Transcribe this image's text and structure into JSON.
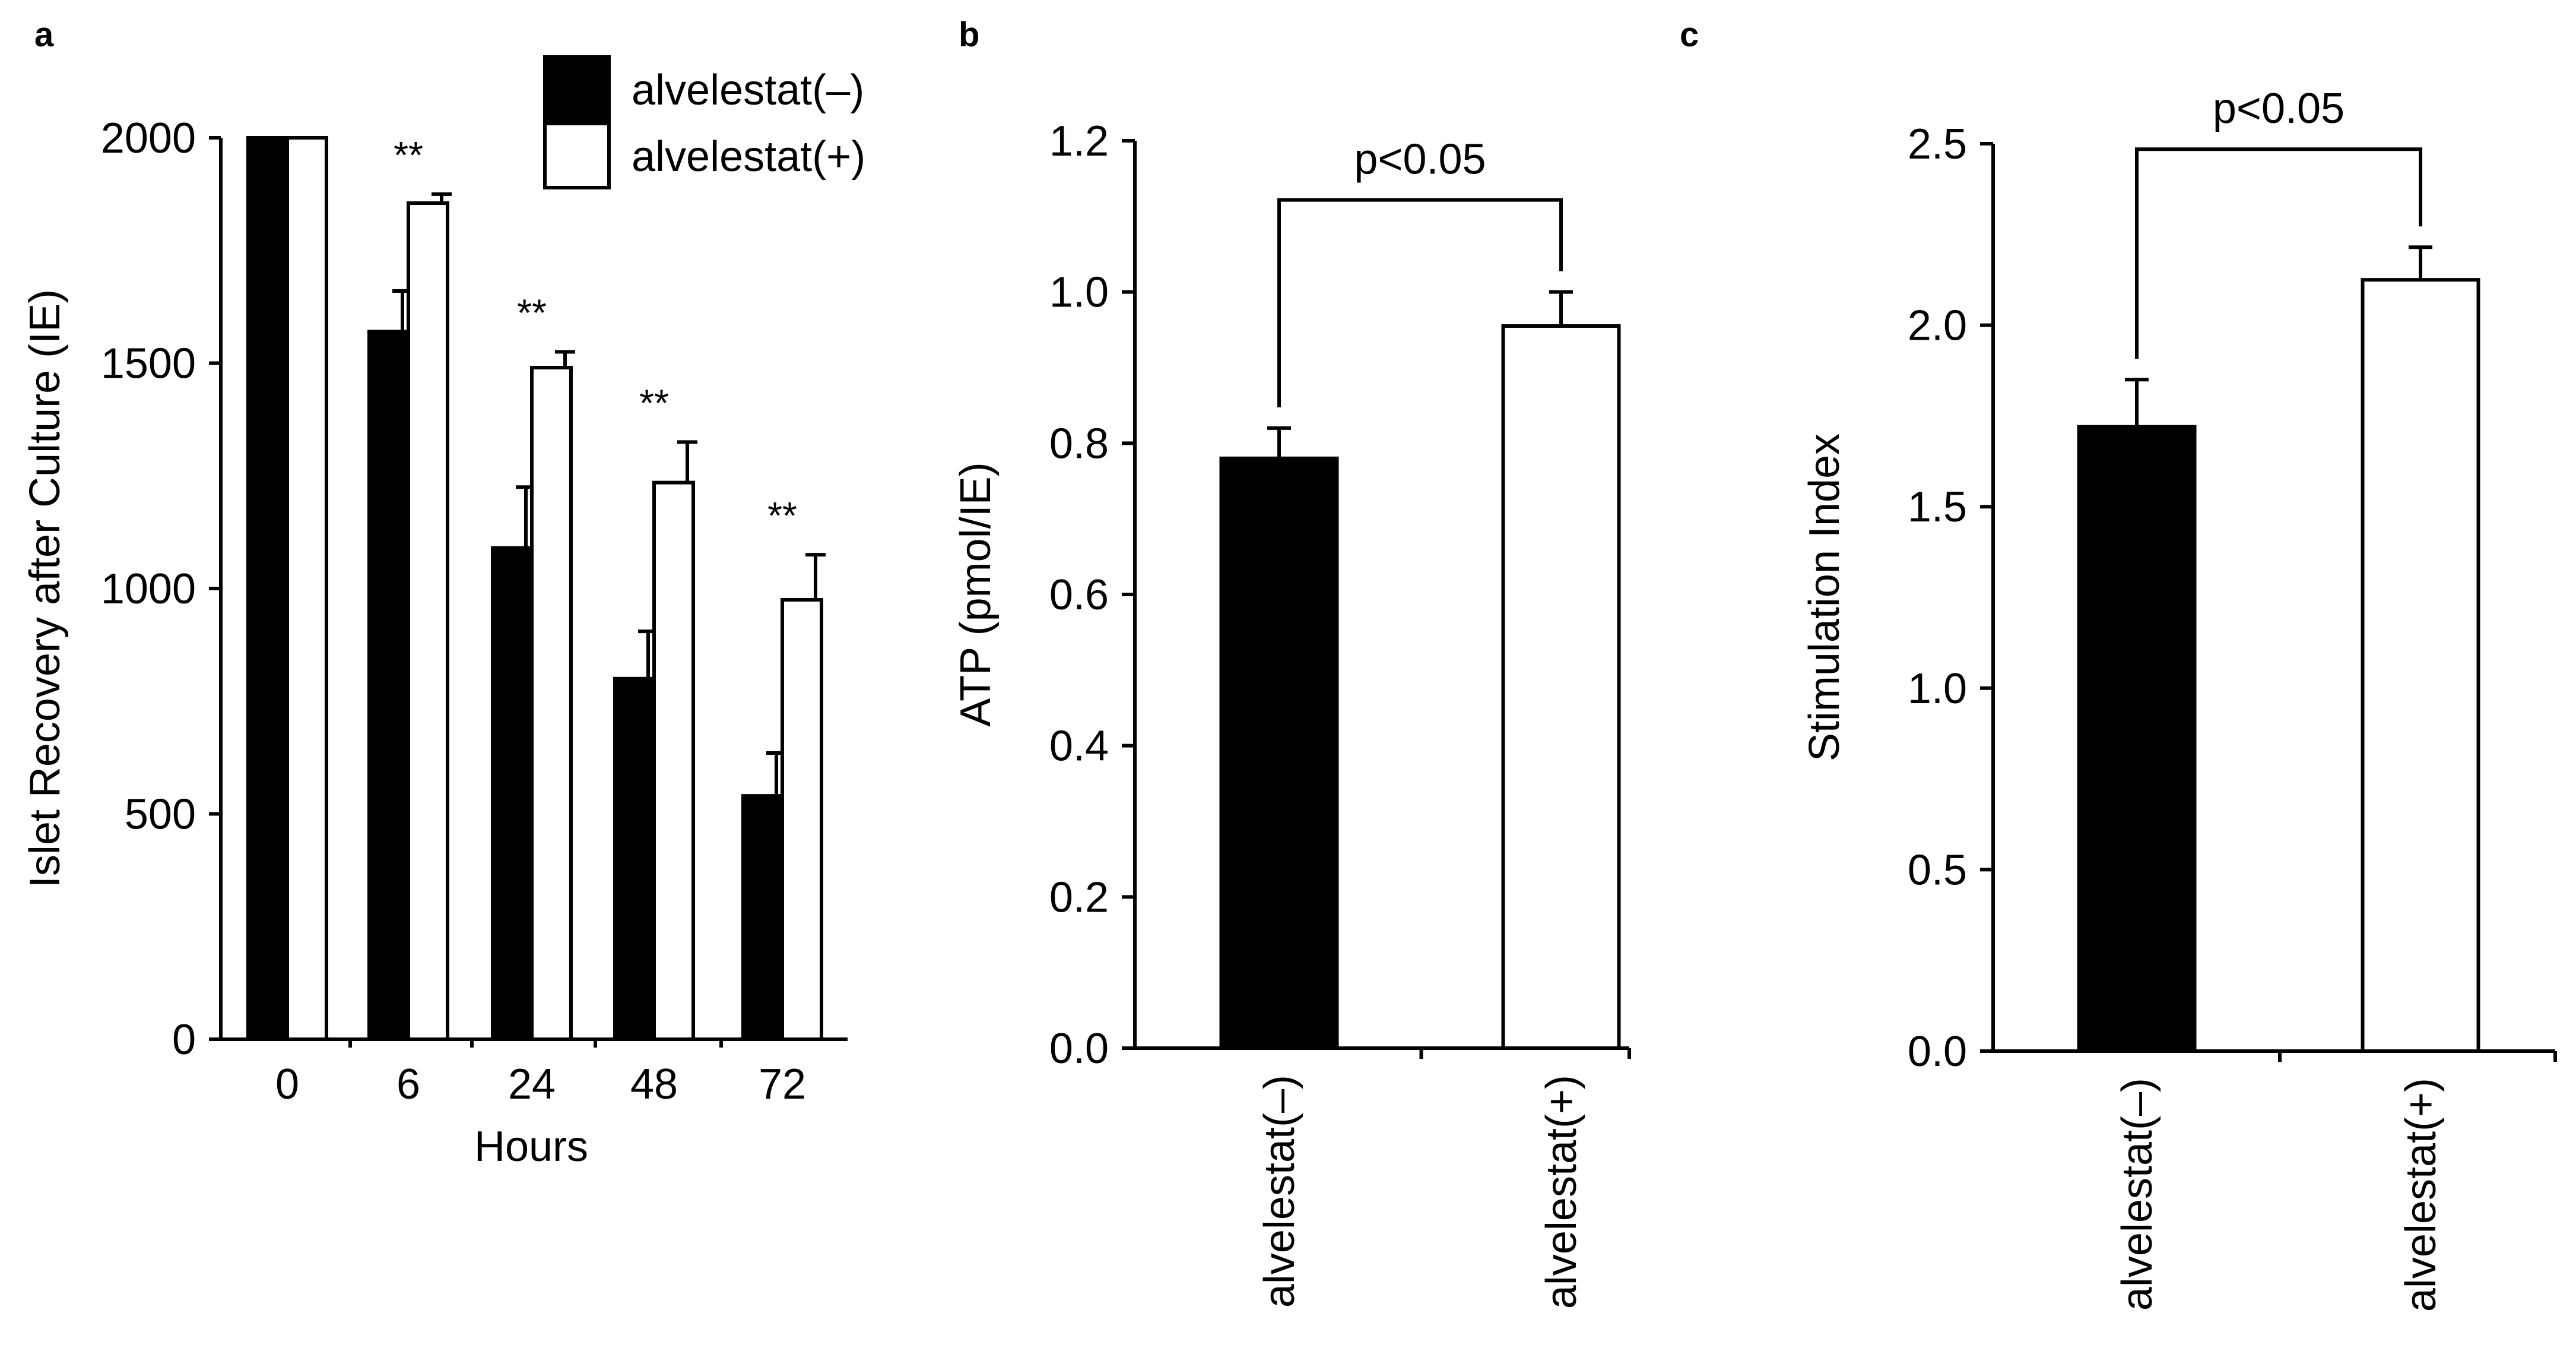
{
  "chart_data": [
    {
      "panel": "a",
      "type": "bar",
      "categories": [
        "0",
        "6",
        "24",
        "48",
        "72"
      ],
      "series": [
        {
          "name": "alvelestat(–)",
          "values": [
            2000,
            1570,
            1090,
            800,
            540
          ],
          "errors": [
            0,
            90,
            135,
            105,
            95
          ],
          "color": "#000000"
        },
        {
          "name": "alvelestat(+)",
          "values": [
            2000,
            1855,
            1490,
            1235,
            975
          ],
          "errors": [
            0,
            20,
            35,
            90,
            100
          ],
          "color": "#ffffff"
        }
      ],
      "annotations": [
        "",
        "**",
        "**",
        "**",
        "**"
      ],
      "xlabel": "Hours",
      "ylabel": "Islet Recovery after Culture (IE)",
      "ylim": [
        0,
        2000
      ],
      "yticks": [
        "0",
        "500",
        "1000",
        "1500",
        "2000"
      ],
      "legend": "top-right",
      "grid": false
    },
    {
      "panel": "b",
      "type": "bar",
      "categories": [
        "alvelestat(–)",
        "alvelestat(+)"
      ],
      "values": [
        0.78,
        0.955
      ],
      "errors": [
        0.04,
        0.045
      ],
      "colors": [
        "#000000",
        "#ffffff"
      ],
      "significance": "p<0.05",
      "xlabel": "",
      "ylabel": "ATP (pmol/IE)",
      "ylim": [
        0,
        1.2
      ],
      "yticks": [
        "0.0",
        "0.2",
        "0.4",
        "0.6",
        "0.8",
        "1.0",
        "1.2"
      ],
      "grid": false
    },
    {
      "panel": "c",
      "type": "bar",
      "categories": [
        "alvelestat(–)",
        "alvelestat(+)"
      ],
      "values": [
        1.72,
        2.125
      ],
      "errors": [
        0.13,
        0.09
      ],
      "colors": [
        "#000000",
        "#ffffff"
      ],
      "significance": "p<0.05",
      "xlabel": "",
      "ylabel": "Stimulation Index",
      "ylim": [
        0,
        2.5
      ],
      "yticks": [
        "0.0",
        "0.5",
        "1.0",
        "1.5",
        "2.0",
        "2.5"
      ],
      "grid": false
    }
  ]
}
